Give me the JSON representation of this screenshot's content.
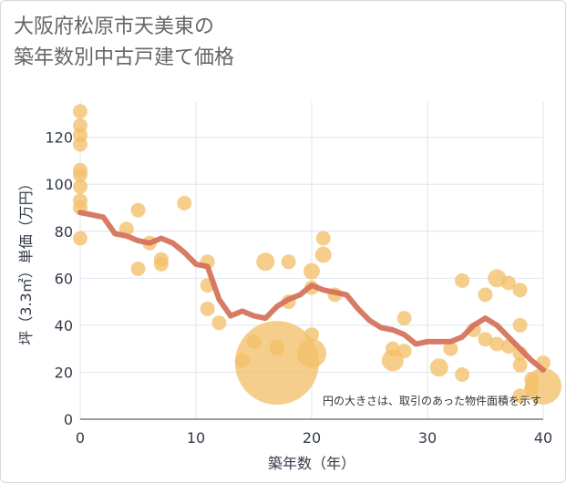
{
  "title_line1": "大阪府松原市天美東の",
  "title_line2": "築年数別中古戸建て価格",
  "chart_data": {
    "type": "scatter",
    "title": "大阪府松原市天美東の築年数別中古戸建て価格",
    "xlabel": "築年数（年）",
    "ylabel": "坪（3.3㎡）単価（万円）",
    "xlim": [
      0,
      40
    ],
    "ylim": [
      0,
      135
    ],
    "xticks": [
      "0",
      "10",
      "20",
      "30",
      "40"
    ],
    "yticks": [
      "0",
      "20",
      "40",
      "60",
      "80",
      "100",
      "120"
    ],
    "xtick_values": [
      0,
      10,
      20,
      30,
      40
    ],
    "ytick_values": [
      0,
      20,
      40,
      60,
      80,
      100,
      120
    ],
    "note": "円の大きさは、取引のあった物件面積を示す",
    "colors": {
      "bubble": "#f3c06a",
      "line": "#d4705a",
      "grid": "#dde6ee"
    },
    "bubbles": [
      {
        "x": 0,
        "y": 131,
        "r": 8
      },
      {
        "x": 0,
        "y": 125,
        "r": 8
      },
      {
        "x": 0,
        "y": 121,
        "r": 8
      },
      {
        "x": 0,
        "y": 117,
        "r": 8
      },
      {
        "x": 0,
        "y": 106,
        "r": 8
      },
      {
        "x": 0,
        "y": 104,
        "r": 8
      },
      {
        "x": 0,
        "y": 99,
        "r": 8
      },
      {
        "x": 0,
        "y": 93,
        "r": 8
      },
      {
        "x": 0,
        "y": 90,
        "r": 8
      },
      {
        "x": 0,
        "y": 77,
        "r": 8
      },
      {
        "x": 4,
        "y": 81,
        "r": 8
      },
      {
        "x": 5,
        "y": 89,
        "r": 8
      },
      {
        "x": 5,
        "y": 64,
        "r": 8
      },
      {
        "x": 6,
        "y": 75,
        "r": 8
      },
      {
        "x": 7,
        "y": 68,
        "r": 8
      },
      {
        "x": 7,
        "y": 66,
        "r": 8
      },
      {
        "x": 9,
        "y": 92,
        "r": 8
      },
      {
        "x": 11,
        "y": 67,
        "r": 8
      },
      {
        "x": 11,
        "y": 57,
        "r": 8
      },
      {
        "x": 11,
        "y": 47,
        "r": 8
      },
      {
        "x": 12,
        "y": 41,
        "r": 8
      },
      {
        "x": 14,
        "y": 25,
        "r": 8
      },
      {
        "x": 15,
        "y": 33,
        "r": 8
      },
      {
        "x": 16,
        "y": 67,
        "r": 10
      },
      {
        "x": 17,
        "y": 31,
        "r": 8
      },
      {
        "x": 17,
        "y": 30,
        "r": 8
      },
      {
        "x": 17,
        "y": 24,
        "r": 46
      },
      {
        "x": 18,
        "y": 67,
        "r": 8
      },
      {
        "x": 18,
        "y": 50,
        "r": 8
      },
      {
        "x": 20,
        "y": 63,
        "r": 9
      },
      {
        "x": 20,
        "y": 56,
        "r": 8
      },
      {
        "x": 20,
        "y": 36,
        "r": 8
      },
      {
        "x": 20,
        "y": 28,
        "r": 16
      },
      {
        "x": 21,
        "y": 77,
        "r": 8
      },
      {
        "x": 21,
        "y": 70,
        "r": 9
      },
      {
        "x": 22,
        "y": 53,
        "r": 8
      },
      {
        "x": 27,
        "y": 30,
        "r": 8
      },
      {
        "x": 27,
        "y": 25,
        "r": 12
      },
      {
        "x": 28,
        "y": 43,
        "r": 8
      },
      {
        "x": 28,
        "y": 29,
        "r": 8
      },
      {
        "x": 31,
        "y": 22,
        "r": 10
      },
      {
        "x": 32,
        "y": 30,
        "r": 8
      },
      {
        "x": 33,
        "y": 59,
        "r": 8
      },
      {
        "x": 33,
        "y": 19,
        "r": 8
      },
      {
        "x": 34,
        "y": 38,
        "r": 8
      },
      {
        "x": 35,
        "y": 53,
        "r": 8
      },
      {
        "x": 35,
        "y": 34,
        "r": 8
      },
      {
        "x": 36,
        "y": 60,
        "r": 10
      },
      {
        "x": 36,
        "y": 32,
        "r": 8
      },
      {
        "x": 37,
        "y": 58,
        "r": 8
      },
      {
        "x": 37,
        "y": 31,
        "r": 8
      },
      {
        "x": 38,
        "y": 55,
        "r": 8
      },
      {
        "x": 38,
        "y": 40,
        "r": 8
      },
      {
        "x": 38,
        "y": 28,
        "r": 8
      },
      {
        "x": 38,
        "y": 23,
        "r": 8
      },
      {
        "x": 38,
        "y": 10,
        "r": 8
      },
      {
        "x": 39,
        "y": 17,
        "r": 8
      },
      {
        "x": 39,
        "y": 13,
        "r": 8
      },
      {
        "x": 40,
        "y": 24,
        "r": 8
      },
      {
        "x": 40,
        "y": 14,
        "r": 20
      }
    ],
    "trend": {
      "x": [
        0,
        1,
        2,
        3,
        4,
        5,
        6,
        7,
        8,
        9,
        10,
        11,
        12,
        13,
        14,
        15,
        16,
        17,
        18,
        19,
        20,
        21,
        22,
        23,
        24,
        25,
        26,
        27,
        28,
        29,
        30,
        31,
        32,
        33,
        34,
        35,
        36,
        37,
        38,
        39,
        40
      ],
      "y": [
        88,
        87,
        86,
        79,
        78,
        76,
        75,
        77,
        75,
        71,
        66,
        65,
        51,
        44,
        46,
        44,
        43,
        48,
        51,
        53,
        57,
        55,
        54,
        53,
        47,
        42,
        39,
        38,
        36,
        32,
        33,
        33,
        33,
        35,
        40,
        43,
        40,
        35,
        30,
        25,
        21
      ]
    }
  }
}
